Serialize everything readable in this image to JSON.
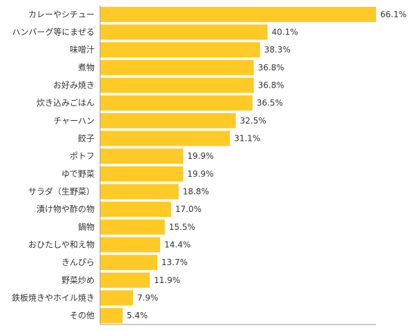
{
  "chart_data": {
    "type": "bar",
    "orientation": "horizontal",
    "categories": [
      "カレーやシチュー",
      "ハンバーグ等にまぜる",
      "味噌汁",
      "煮物",
      "お好み焼き",
      "炊き込みごはん",
      "チャーハン",
      "餃子",
      "ポトフ",
      "ゆで野菜",
      "サラダ（生野菜）",
      "漬け物や酢の物",
      "鍋物",
      "おひたしや和え物",
      "きんぴら",
      "野菜炒め",
      "鉄板焼きやホイル焼き",
      "その他"
    ],
    "values": [
      66.1,
      40.1,
      38.3,
      36.8,
      36.8,
      36.5,
      32.5,
      31.1,
      19.9,
      19.9,
      18.8,
      17.0,
      15.5,
      14.4,
      13.7,
      11.9,
      7.9,
      5.4
    ],
    "value_labels": [
      "66.1%",
      "40.1%",
      "38.3%",
      "36.8%",
      "36.8%",
      "36.5%",
      "32.5%",
      "31.1%",
      "19.9%",
      "19.9%",
      "18.8%",
      "17.0%",
      "15.5%",
      "14.4%",
      "13.7%",
      "11.9%",
      "7.9%",
      "5.4%"
    ],
    "xlim": [
      0,
      66.1
    ],
    "bar_color": "#FFC926",
    "axis_color": "#999999",
    "text_color": "#333333",
    "grid": false,
    "legend": "none"
  }
}
